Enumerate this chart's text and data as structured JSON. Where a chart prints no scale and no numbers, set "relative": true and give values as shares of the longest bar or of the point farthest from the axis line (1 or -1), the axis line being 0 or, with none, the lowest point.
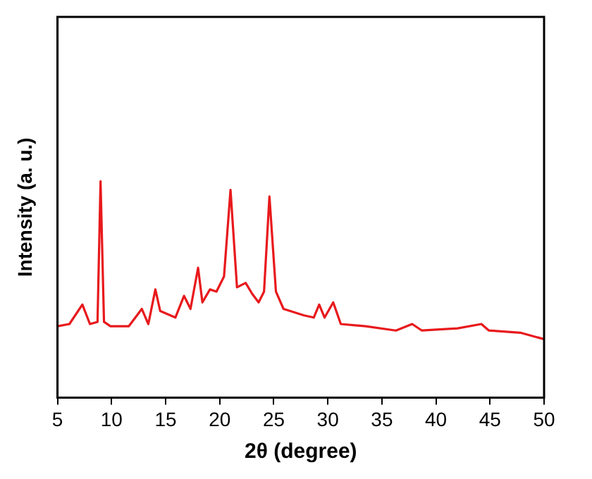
{
  "chart_data": {
    "type": "line",
    "xlabel": "2θ (degree)",
    "ylabel": "Intensity (a. u.)",
    "relative": true,
    "tick_labels": "x",
    "grid": false,
    "legend": false,
    "marker": "none",
    "line_style": "solid",
    "xlim": [
      5,
      50
    ],
    "xticks": [
      5,
      10,
      15,
      20,
      25,
      30,
      35,
      40,
      45,
      50
    ],
    "series": [
      {
        "color": "#e8191c",
        "x": [
          5,
          6.1,
          7.3,
          8.0,
          8.7,
          8.98,
          9.3,
          9.9,
          11.6,
          12.8,
          13.4,
          14.05,
          14.5,
          15.9,
          16.7,
          17.3,
          18.0,
          18.4,
          19.1,
          19.7,
          20.4,
          21.0,
          21.6,
          22.4,
          23.0,
          23.6,
          24.1,
          24.6,
          25.2,
          25.9,
          27.8,
          28.7,
          29.2,
          29.7,
          30.5,
          31.2,
          33.5,
          36.3,
          37.8,
          38.7,
          42.0,
          44.2,
          44.9,
          47.8,
          50
        ],
        "values": [
          0.33,
          0.34,
          0.43,
          0.34,
          0.35,
          1,
          0.35,
          0.33,
          0.33,
          0.41,
          0.34,
          0.5,
          0.4,
          0.37,
          0.47,
          0.41,
          0.6,
          0.44,
          0.5,
          0.49,
          0.56,
          0.96,
          0.51,
          0.53,
          0.48,
          0.44,
          0.49,
          0.93,
          0.49,
          0.41,
          0.38,
          0.37,
          0.43,
          0.37,
          0.44,
          0.34,
          0.33,
          0.31,
          0.34,
          0.31,
          0.32,
          0.34,
          0.31,
          0.3,
          0.27
        ]
      }
    ]
  }
}
